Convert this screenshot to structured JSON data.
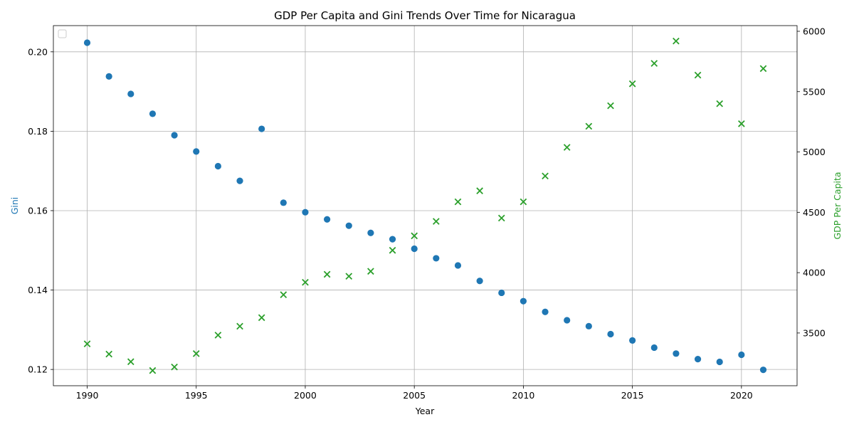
{
  "chart_data": {
    "type": "scatter",
    "title": "GDP Per Capita and Gini Trends Over Time for Nicaragua",
    "xlabel": "Year",
    "ylabel_left": "Gini",
    "ylabel_right": "GDP Per Capita",
    "xlim": [
      1988.45,
      2022.55
    ],
    "ylim_left": [
      0.1159,
      0.2066
    ],
    "ylim_right": [
      3063,
      6047
    ],
    "x_ticks": [
      1990,
      1995,
      2000,
      2005,
      2010,
      2015,
      2020
    ],
    "y_ticks_left": [
      0.12,
      0.14,
      0.16,
      0.18,
      0.2
    ],
    "y_ticks_right": [
      3500,
      4000,
      4500,
      5000,
      5500,
      6000
    ],
    "grid": true,
    "legend": {
      "placement": "top-left",
      "entries": []
    },
    "colors": {
      "gini": "#1f77b4",
      "gdp": "#2ca02c",
      "grid": "#b0b0b0"
    },
    "series": [
      {
        "axis": "left",
        "marker": "circle",
        "x": [
          1990,
          1991,
          1992,
          1993,
          1994,
          1995,
          1996,
          1997,
          1998,
          1999,
          2000,
          2001,
          2002,
          2003,
          2004,
          2005,
          2006,
          2007,
          2008,
          2009,
          2010,
          2011,
          2012,
          2013,
          2014,
          2015,
          2016,
          2017,
          2018,
          2019,
          2020,
          2021
        ],
        "values": [
          0.2023,
          0.1938,
          0.1894,
          0.1844,
          0.179,
          0.1749,
          0.1712,
          0.1675,
          0.1806,
          0.162,
          0.1596,
          0.1578,
          0.1562,
          0.1544,
          0.1528,
          0.1504,
          0.148,
          0.1462,
          0.1423,
          0.1393,
          0.1372,
          0.1345,
          0.1324,
          0.1309,
          0.1289,
          0.1273,
          0.1255,
          0.124,
          0.1226,
          0.1219,
          0.1237,
          0.1199
        ]
      },
      {
        "axis": "right",
        "marker": "x",
        "x": [
          1990,
          1991,
          1992,
          1993,
          1994,
          1995,
          1996,
          1997,
          1998,
          1999,
          2000,
          2001,
          2002,
          2003,
          2004,
          2005,
          2006,
          2007,
          2008,
          2009,
          2010,
          2011,
          2012,
          2013,
          2014,
          2015,
          2016,
          2017,
          2018,
          2019,
          2020,
          2021
        ],
        "values": [
          3410,
          3325,
          3262,
          3189,
          3218,
          3329,
          3482,
          3556,
          3627,
          3817,
          3920,
          3986,
          3970,
          4011,
          4185,
          4305,
          4425,
          4587,
          4678,
          4452,
          4587,
          4801,
          5038,
          5213,
          5383,
          5565,
          5734,
          5919,
          5637,
          5400,
          5234,
          5691
        ]
      }
    ]
  }
}
